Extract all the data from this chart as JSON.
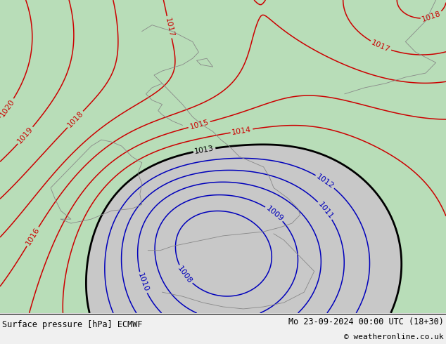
{
  "title_left": "Surface pressure [hPa] ECMWF",
  "title_right": "Mo 23-09-2024 00:00 UTC (18+30)",
  "copyright": "© weatheronline.co.uk",
  "background_color": "#c8c8c8",
  "land_color_green": "#b8ddb8",
  "land_color_gray": "#c0c0c0",
  "red_contour_color": "#cc0000",
  "blue_contour_color": "#0000bb",
  "black_contour_color": "#000000",
  "gray_coast_color": "#888888",
  "fig_width": 6.34,
  "fig_height": 4.9,
  "dpi": 100,
  "lon_min": -13,
  "lon_max": 9,
  "lat_min": 47,
  "lat_max": 62
}
